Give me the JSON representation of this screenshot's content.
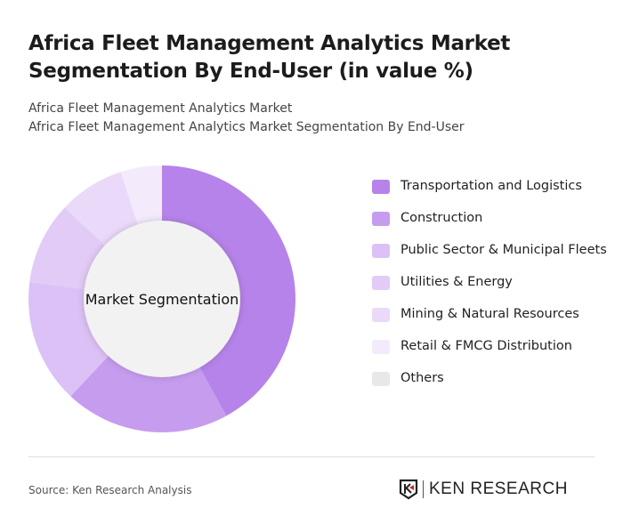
{
  "title": "Africa Fleet Management Analytics Market Segmentation By End-User (in value %)",
  "subtitle1": "Africa Fleet Management Analytics Market",
  "subtitle2": "Africa Fleet Management Analytics Market Segmentation By End-User",
  "source": "Source: Ken Research Analysis",
  "logo_text": "KEN RESEARCH",
  "chart_data": {
    "type": "pie",
    "variant": "donut",
    "center_label": "Market Segmentation",
    "legend_position": "right",
    "categories": [
      "Transportation and Logistics",
      "Construction",
      "Public Sector & Municipal Fleets",
      "Utilities & Energy",
      "Mining & Natural Resources",
      "Retail & FMCG Distribution",
      "Others"
    ],
    "values": [
      42,
      20,
      15,
      10,
      8,
      5,
      0
    ],
    "colors": [
      "#b683ea",
      "#c69cee",
      "#dbc1f5",
      "#e2cbf6",
      "#ead9f8",
      "#f3ebfb",
      "#e8e8e8"
    ]
  }
}
